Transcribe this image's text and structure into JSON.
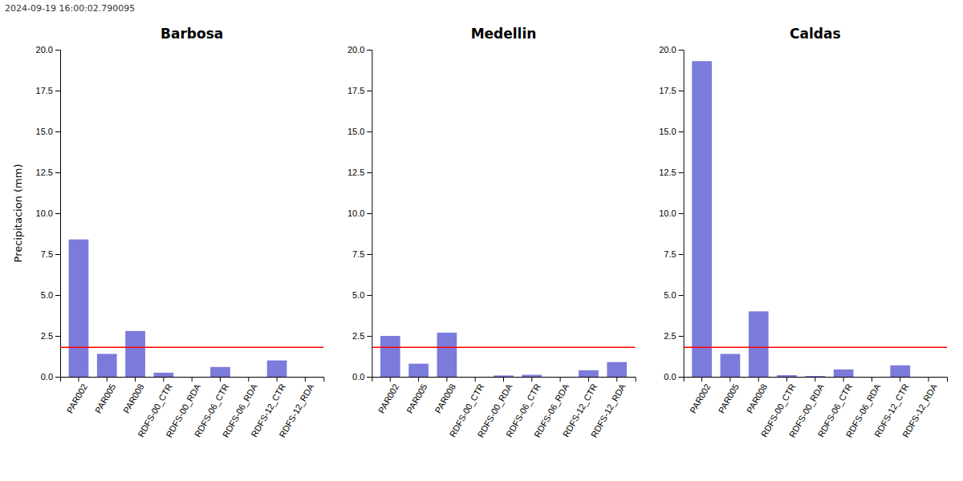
{
  "title": "2024-09-19 16:00:02.790095",
  "chart_data": [
    {
      "type": "bar",
      "title": "Barbosa",
      "ylabel": "Precipitacion (mm)",
      "categories": [
        "PAR002",
        "PAR005",
        "PAR008",
        "RDFS-00_CTR",
        "RDFS-00_RDA",
        "RDFS-06_CTR",
        "RDFS-06_RDA",
        "RDFS-12_CTR",
        "RDFS-12_RDA"
      ],
      "values": [
        8.4,
        1.4,
        2.8,
        0.25,
        0.0,
        0.6,
        0.0,
        1.0,
        0.0
      ],
      "color": "#7b7bdb",
      "threshold": {
        "value": 1.8,
        "color": "red"
      },
      "ylim": [
        0,
        20.0
      ],
      "yticks": [
        {
          "value": 0.0,
          "label": "0.0"
        },
        2.5,
        {
          "value": 5.0,
          "label": "5.0"
        },
        7.5,
        {
          "value": 10.0,
          "label": "10.0"
        },
        12.5,
        {
          "value": 15.0,
          "label": "15.0"
        },
        17.5,
        {
          "value": 20.0,
          "label": "20.0"
        }
      ]
    },
    {
      "type": "bar",
      "title": "Medellin",
      "categories": [
        "PAR002",
        "PAR005",
        "PAR008",
        "RDFS-00_CTR",
        "RDFS-00_RDA",
        "RDFS-06_CTR",
        "RDFS-06_RDA",
        "RDFS-12_CTR",
        "RDFS-12_RDA"
      ],
      "values": [
        2.5,
        0.8,
        2.7,
        0.0,
        0.08,
        0.12,
        0.0,
        0.4,
        0.9
      ],
      "color": "#7b7bdb",
      "threshold": {
        "value": 1.8,
        "color": "red"
      },
      "ylim": [
        0,
        20.0
      ],
      "yticks": [
        {
          "value": 0.0,
          "label": "0.0"
        },
        2.5,
        {
          "value": 5.0,
          "label": "5.0"
        },
        7.5,
        {
          "value": 10.0,
          "label": "10.0"
        },
        12.5,
        {
          "value": 15.0,
          "label": "15.0"
        },
        17.5,
        {
          "value": 20.0,
          "label": "20.0"
        }
      ]
    },
    {
      "type": "bar",
      "title": "Caldas",
      "categories": [
        "PAR002",
        "PAR005",
        "PAR008",
        "RDFS-00_CTR",
        "RDFS-00_RDA",
        "RDFS-06_CTR",
        "RDFS-06_RDA",
        "RDFS-12_CTR",
        "RDFS-12_RDA"
      ],
      "values": [
        19.3,
        1.4,
        4.0,
        0.1,
        0.05,
        0.45,
        0.0,
        0.7,
        0.0
      ],
      "color": "#7b7bdb",
      "threshold": {
        "value": 1.8,
        "color": "red"
      },
      "ylim": [
        0,
        20.0
      ],
      "yticks": [
        {
          "value": 0.0,
          "label": "0.0"
        },
        2.5,
        {
          "value": 5.0,
          "label": "5.0"
        },
        7.5,
        {
          "value": 10.0,
          "label": "10.0"
        },
        12.5,
        {
          "value": 15.0,
          "label": "15.0"
        },
        17.5,
        {
          "value": 20.0,
          "label": "20.0"
        }
      ]
    }
  ]
}
